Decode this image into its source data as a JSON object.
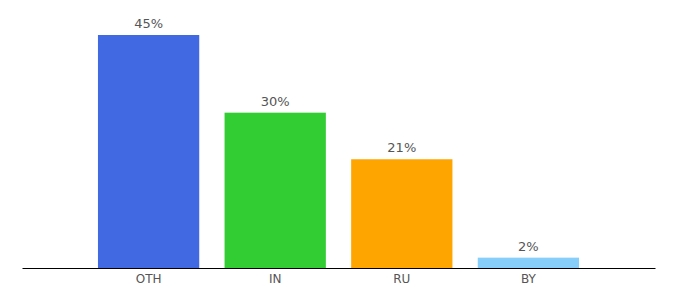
{
  "chart_data": {
    "type": "bar",
    "categories": [
      "OTH",
      "IN",
      "RU",
      "BY"
    ],
    "values": [
      45,
      30,
      21,
      2
    ],
    "value_labels": [
      "45%",
      "30%",
      "21%",
      "2%"
    ],
    "colors": [
      "#4169e1",
      "#32cd32",
      "#ffa500",
      "#87cefa"
    ],
    "data_labels": true,
    "tick_labels": "x"
  }
}
